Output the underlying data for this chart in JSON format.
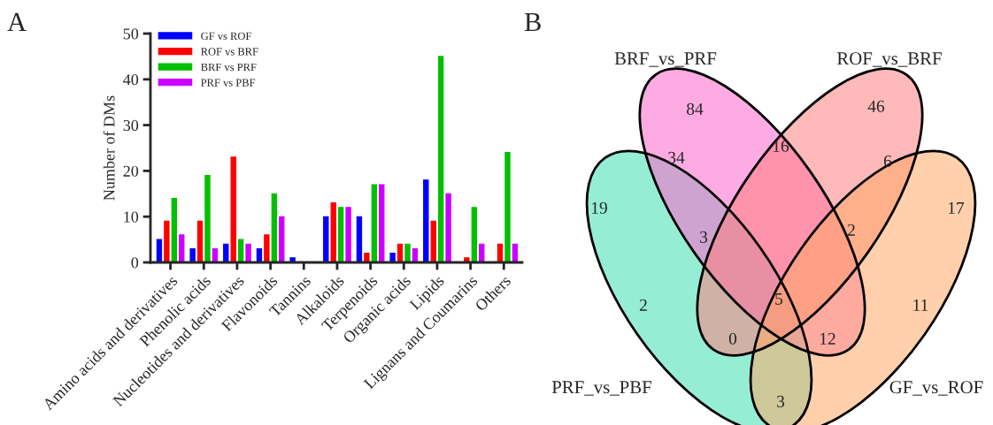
{
  "chart_data": [
    {
      "type": "bar",
      "title": "A",
      "ylabel": "Number of DMs",
      "categories": [
        "Amino acids and derivatives",
        "Phenolic acids",
        "Nucleotides and derivatives",
        "Flavonoids",
        "Tannins",
        "Alkaloids",
        "Terpenoids",
        "Organic acids",
        "Lipids",
        "Lignans and Coumarins",
        "Others"
      ],
      "series": [
        {
          "name": "GF vs ROF",
          "color": "#0000ff",
          "values": [
            5,
            3,
            4,
            3,
            1,
            10,
            10,
            2,
            18,
            0,
            0
          ]
        },
        {
          "name": "ROF vs BRF",
          "color": "#ff0000",
          "values": [
            9,
            9,
            23,
            6,
            0,
            13,
            2,
            4,
            9,
            1,
            4
          ]
        },
        {
          "name": "BRF vs PRF",
          "color": "#00c000",
          "values": [
            14,
            19,
            5,
            15,
            0,
            12,
            17,
            4,
            45,
            12,
            24
          ]
        },
        {
          "name": "PRF vs PBF",
          "color": "#cc00ff",
          "values": [
            6,
            3,
            4,
            10,
            0,
            12,
            17,
            3,
            15,
            4,
            4
          ]
        }
      ],
      "ylim": [
        0,
        50
      ],
      "yticks": [
        0,
        10,
        20,
        30,
        40,
        50
      ],
      "legend": "top left",
      "grid": false
    },
    {
      "type": "other",
      "title": "B",
      "annotations": [
        "BRF_vs_PRF",
        "ROF_vs_BRF",
        "PRF_vs_PBF",
        "GF_vs_ROF",
        "84",
        "46",
        "34",
        "16",
        "6",
        "19",
        "3",
        "2",
        "17",
        "5",
        "2",
        "11",
        "0",
        "12",
        "3"
      ]
    }
  ]
}
